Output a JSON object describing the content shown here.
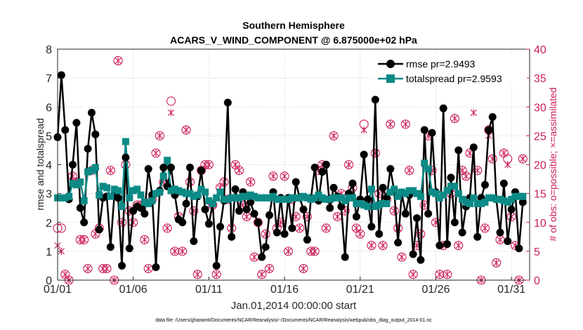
{
  "chart_data": {
    "type": "line",
    "title": "Southern Hemisphere",
    "subtitle": "ACARS_V_WIND_COMPONENT @ 6.875000e+02 hPa",
    "xlabel": "Jan.01,2014 00:00:00 start",
    "ylabel": "rmse and totalspread",
    "ylabel_right": "# of obs: o=possible; ×=assimilated",
    "footnote": "data file: /Users/gharamti/Documents/NCAR/Reanalysis/~/Documents/NCAR/Reanalysis/webpub/obs_diag_output_2014-01.nc",
    "xlim": [
      1,
      32.2
    ],
    "ylim": [
      0,
      8
    ],
    "ylim_right": [
      0,
      40
    ],
    "x_ticks": [
      1,
      6,
      11,
      16,
      21,
      26,
      31
    ],
    "x_tick_labels": [
      "01/01",
      "01/06",
      "01/11",
      "01/16",
      "01/21",
      "01/26",
      "01/31"
    ],
    "y_ticks": [
      0,
      1,
      2,
      3,
      4,
      5,
      6,
      7,
      8
    ],
    "y_ticks_right": [
      0,
      5,
      10,
      15,
      20,
      25,
      30,
      35,
      40
    ],
    "legend_position": "top-right",
    "grid": "dotted",
    "colors": {
      "rmse": "#000000",
      "totalspread": "#0b8a86",
      "obs": "#cc1f5b"
    },
    "series": [
      {
        "name": "rmse pr=2.9493",
        "key": "rmse",
        "x": [
          1.0,
          1.25,
          1.5,
          1.75,
          2.0,
          2.25,
          2.5,
          2.75,
          3.0,
          3.25,
          3.5,
          3.75,
          4.0,
          4.25,
          4.5,
          4.75,
          5.0,
          5.25,
          5.5,
          5.75,
          6.0,
          6.25,
          6.5,
          6.75,
          7.0,
          7.25,
          7.5,
          7.75,
          8.0,
          8.25,
          8.5,
          8.75,
          9.0,
          9.25,
          9.5,
          9.75,
          10.0,
          10.25,
          10.5,
          10.75,
          11.0,
          11.25,
          11.5,
          11.75,
          12.0,
          12.25,
          12.5,
          12.75,
          13.0,
          13.25,
          13.5,
          13.75,
          14.0,
          14.25,
          14.5,
          14.75,
          15.0,
          15.25,
          15.5,
          15.75,
          16.0,
          16.25,
          16.5,
          16.75,
          17.0,
          17.25,
          17.5,
          17.75,
          18.0,
          18.25,
          18.5,
          18.75,
          19.0,
          19.25,
          19.5,
          19.75,
          20.0,
          20.25,
          20.5,
          20.75,
          21.0,
          21.25,
          21.5,
          21.75,
          22.0,
          22.25,
          22.5,
          22.75,
          23.0,
          23.25,
          23.5,
          23.75,
          24.0,
          24.25,
          24.5,
          24.75,
          25.0,
          25.25,
          25.5,
          25.75,
          26.0,
          26.25,
          26.5,
          26.75,
          27.0,
          27.25,
          27.5,
          27.75,
          28.0,
          28.25,
          28.5,
          28.75,
          29.0,
          29.25,
          29.5,
          29.75,
          30.0,
          30.25,
          30.5,
          30.75,
          31.0,
          31.25,
          31.5,
          31.75
        ],
        "values": [
          4.95,
          7.1,
          5.2,
          2.8,
          4.0,
          5.45,
          2.5,
          2.0,
          4.55,
          5.8,
          5.05,
          1.75,
          2.85,
          2.9,
          1.15,
          2.95,
          2.85,
          0.5,
          4.25,
          1.1,
          2.4,
          2.55,
          2.5,
          2.3,
          3.85,
          2.95,
          0.45,
          3.1,
          3.9,
          3.25,
          3.9,
          2.95,
          2.1,
          2.0,
          2.65,
          3.9,
          1.35,
          2.9,
          3.8,
          2.45,
          1.95,
          2.65,
          0.5,
          1.85,
          2.75,
          6.15,
          1.5,
          3.15,
          2.4,
          3.05,
          2.45,
          2.7,
          2.3,
          2.0,
          0.8,
          1.15,
          2.25,
          3.05,
          1.65,
          2.85,
          1.6,
          2.85,
          1.8,
          3.4,
          2.85,
          2.45,
          1.4,
          2.85,
          3.9,
          2.75,
          3.75,
          4.0,
          2.5,
          3.2,
          2.9,
          2.55,
          0.8,
          3.0,
          3.35,
          2.2,
          2.8,
          4.35,
          2.8,
          1.85,
          6.25,
          1.6,
          3.2,
          2.85,
          3.85,
          3.1,
          1.3,
          3.0,
          2.3,
          2.95,
          0.9,
          2.15,
          0.7,
          5.2,
          2.3,
          5.1,
          3.05,
          1.2,
          5.95,
          1.25,
          3.55,
          2.0,
          4.5,
          1.65,
          2.55,
          2.85,
          4.6,
          1.5,
          2.85,
          3.3,
          5.2,
          5.65,
          2.8,
          1.65,
          3.35,
          1.35,
          2.45,
          3.05,
          1.1,
          2.7
        ]
      },
      {
        "name": "totalspread pr=2.9593",
        "key": "totalspread",
        "x": [
          1.0,
          1.25,
          1.5,
          1.75,
          2.0,
          2.25,
          2.5,
          2.75,
          3.0,
          3.25,
          3.5,
          3.75,
          4.0,
          4.25,
          4.5,
          4.75,
          5.0,
          5.25,
          5.5,
          5.75,
          6.0,
          6.25,
          6.5,
          6.75,
          7.0,
          7.25,
          7.5,
          7.75,
          8.0,
          8.25,
          8.5,
          8.75,
          9.0,
          9.25,
          9.5,
          9.75,
          10.0,
          10.25,
          10.5,
          10.75,
          11.0,
          11.25,
          11.5,
          11.75,
          12.0,
          12.25,
          12.5,
          12.75,
          13.0,
          13.25,
          13.5,
          13.75,
          14.0,
          14.25,
          14.5,
          14.75,
          15.0,
          15.25,
          15.5,
          15.75,
          16.0,
          16.25,
          16.5,
          16.75,
          17.0,
          17.25,
          17.5,
          17.75,
          18.0,
          18.25,
          18.5,
          18.75,
          19.0,
          19.25,
          19.5,
          19.75,
          20.0,
          20.25,
          20.5,
          20.75,
          21.0,
          21.25,
          21.5,
          21.75,
          22.0,
          22.25,
          22.5,
          22.75,
          23.0,
          23.25,
          23.5,
          23.75,
          24.0,
          24.25,
          24.5,
          24.75,
          25.0,
          25.25,
          25.5,
          25.75,
          26.0,
          26.25,
          26.5,
          26.75,
          27.0,
          27.25,
          27.5,
          27.75,
          28.0,
          28.25,
          28.5,
          28.75,
          29.0,
          29.25,
          29.5,
          29.75,
          30.0,
          30.25,
          30.5,
          30.75,
          31.0,
          31.25,
          31.5,
          31.75
        ],
        "values": [
          2.85,
          2.85,
          2.85,
          2.9,
          3.35,
          3.3,
          3.4,
          2.75,
          3.75,
          3.8,
          3.9,
          2.95,
          3.25,
          3.2,
          2.9,
          3.15,
          3.1,
          2.55,
          4.8,
          2.85,
          3.1,
          3.15,
          2.95,
          2.7,
          2.65,
          2.75,
          3.0,
          3.05,
          3.6,
          4.15,
          3.1,
          3.15,
          3.1,
          3.05,
          3.0,
          3.0,
          2.9,
          2.95,
          3.15,
          3.05,
          2.75,
          2.65,
          2.85,
          3.05,
          2.8,
          2.8,
          2.85,
          2.85,
          2.85,
          2.9,
          2.9,
          2.95,
          2.9,
          2.85,
          2.85,
          2.85,
          2.85,
          2.9,
          2.8,
          2.8,
          2.8,
          2.8,
          2.85,
          2.85,
          2.85,
          2.9,
          2.85,
          2.8,
          2.85,
          2.95,
          2.85,
          2.8,
          2.8,
          2.85,
          2.85,
          2.85,
          2.75,
          2.85,
          2.85,
          2.65,
          2.65,
          2.6,
          2.55,
          3.15,
          2.55,
          2.6,
          2.65,
          2.65,
          3.05,
          3.15,
          2.9,
          3.05,
          3.0,
          3.1,
          3.1,
          3.0,
          2.9,
          4.05,
          3.85,
          3.05,
          3.0,
          2.85,
          2.95,
          3.1,
          3.25,
          3.25,
          3.0,
          2.8,
          2.7,
          2.65,
          2.85,
          2.65,
          2.65,
          2.7,
          2.85,
          2.85,
          2.8,
          2.8,
          2.75,
          2.7,
          2.8,
          2.9,
          2.9,
          2.9
        ]
      }
    ],
    "obs_possible": {
      "x": [
        1.0,
        1.25,
        1.5,
        1.75,
        2.0,
        2.25,
        2.5,
        2.75,
        3.0,
        3.25,
        3.5,
        3.75,
        4.0,
        4.25,
        4.5,
        4.75,
        5.0,
        5.25,
        5.5,
        5.75,
        6.0,
        6.25,
        6.5,
        6.75,
        7.0,
        7.25,
        7.5,
        7.75,
        8.0,
        8.25,
        8.5,
        8.75,
        9.0,
        9.25,
        9.5,
        9.75,
        10.0,
        10.25,
        10.5,
        10.75,
        11.0,
        11.25,
        11.5,
        11.75,
        12.0,
        12.25,
        12.5,
        12.75,
        13.0,
        13.25,
        13.5,
        13.75,
        14.0,
        14.25,
        14.5,
        14.75,
        15.0,
        15.25,
        15.5,
        15.75,
        16.0,
        16.25,
        16.5,
        16.75,
        17.0,
        17.25,
        17.5,
        17.75,
        18.0,
        18.25,
        18.5,
        18.75,
        19.0,
        19.25,
        19.5,
        19.75,
        20.0,
        20.25,
        20.5,
        20.75,
        21.0,
        21.25,
        21.5,
        21.75,
        22.0,
        22.25,
        22.5,
        22.75,
        23.0,
        23.25,
        23.5,
        23.75,
        24.0,
        24.25,
        24.5,
        24.75,
        25.0,
        25.25,
        25.5,
        25.75,
        26.0,
        26.25,
        26.5,
        26.75,
        27.0,
        27.25,
        27.5,
        27.75,
        28.0,
        28.25,
        28.5,
        28.75,
        29.0,
        29.25,
        29.5,
        29.75,
        30.0,
        30.25,
        30.5,
        30.75,
        31.0,
        31.25,
        31.5,
        31.75
      ],
      "values": [
        9,
        9,
        1,
        0,
        18,
        17,
        7,
        7,
        2,
        19,
        8,
        9,
        2,
        2,
        19,
        0,
        38,
        10,
        20,
        12,
        10,
        13,
        13,
        7,
        2,
        14,
        22,
        25,
        17,
        9,
        31,
        5,
        11,
        5,
        26,
        17,
        12,
        1,
        19,
        20,
        20,
        13,
        1,
        16,
        17,
        14,
        9,
        20,
        19,
        13,
        11,
        17,
        4,
        10,
        1,
        8,
        2,
        18,
        9,
        10,
        18,
        5,
        14,
        11,
        9,
        2,
        11,
        5,
        5,
        19,
        20,
        9,
        14,
        25,
        11,
        15,
        12,
        20,
        16,
        9,
        8,
        27,
        13,
        6,
        22,
        15,
        6,
        14,
        27,
        12,
        9,
        4,
        27,
        19,
        1,
        6,
        8,
        13,
        25,
        19,
        10,
        1,
        6,
        1,
        15,
        28,
        6,
        19,
        18,
        22,
        36,
        19,
        0,
        9,
        26,
        21,
        3,
        7,
        22,
        21,
        11,
        6,
        0,
        21
      ]
    },
    "obs_assimilated": {
      "x": [
        1.0,
        1.25,
        1.5,
        1.75,
        2.0,
        2.25,
        2.5,
        2.75,
        3.0,
        3.25,
        3.5,
        3.75,
        4.0,
        4.25,
        4.5,
        4.75,
        5.0,
        5.25,
        5.5,
        5.75,
        6.0,
        6.25,
        6.5,
        6.75,
        7.0,
        7.25,
        7.5,
        7.75,
        8.0,
        8.25,
        8.5,
        8.75,
        9.0,
        9.25,
        9.5,
        9.75,
        10.0,
        10.25,
        10.5,
        10.75,
        11.0,
        11.25,
        11.5,
        11.75,
        12.0,
        12.25,
        12.5,
        12.75,
        13.0,
        13.25,
        13.5,
        13.75,
        14.0,
        14.25,
        14.5,
        14.75,
        15.0,
        15.25,
        15.5,
        15.75,
        16.0,
        16.25,
        16.5,
        16.75,
        17.0,
        17.25,
        17.5,
        17.75,
        18.0,
        18.25,
        18.5,
        18.75,
        19.0,
        19.25,
        19.5,
        19.75,
        20.0,
        20.25,
        20.5,
        20.75,
        21.0,
        21.25,
        21.5,
        21.75,
        22.0,
        22.25,
        22.5,
        22.75,
        23.0,
        23.25,
        23.5,
        23.75,
        24.0,
        24.25,
        24.5,
        24.75,
        25.0,
        25.25,
        25.5,
        25.75,
        26.0,
        26.25,
        26.5,
        26.75,
        27.0,
        27.25,
        27.5,
        27.75,
        28.0,
        28.25,
        28.5,
        28.75,
        29.0,
        29.25,
        29.5,
        29.75,
        30.0,
        30.25,
        30.5,
        30.75,
        31.0,
        31.25,
        31.5,
        31.75
      ],
      "values": [
        6,
        5,
        1,
        0,
        18,
        17,
        7,
        7,
        2,
        19,
        8,
        9,
        2,
        2,
        19,
        0,
        38,
        10,
        20,
        12,
        10,
        13,
        13,
        7,
        2,
        14,
        22,
        25,
        17,
        9,
        29,
        5,
        11,
        5,
        26,
        17,
        12,
        1,
        19,
        20,
        20,
        13,
        1,
        16,
        17,
        14,
        9,
        20,
        19,
        13,
        11,
        17,
        4,
        10,
        1,
        8,
        2,
        18,
        9,
        10,
        18,
        5,
        14,
        11,
        9,
        2,
        11,
        5,
        5,
        19,
        20,
        9,
        14,
        25,
        11,
        15,
        12,
        20,
        16,
        9,
        8,
        26,
        13,
        6,
        22,
        15,
        6,
        14,
        27,
        12,
        9,
        4,
        27,
        19,
        1,
        6,
        8,
        13,
        25,
        19,
        10,
        1,
        6,
        1,
        15,
        28,
        6,
        19,
        18,
        22,
        29,
        19,
        0,
        9,
        25,
        21,
        3,
        7,
        22,
        20,
        11,
        6,
        0,
        21
      ]
    }
  }
}
